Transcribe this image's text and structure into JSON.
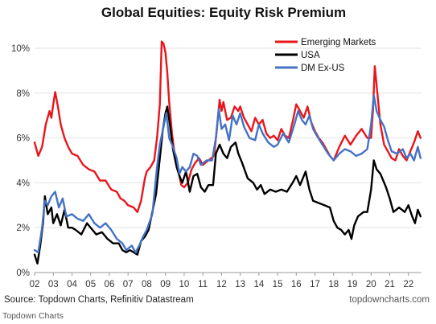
{
  "chart_data": {
    "type": "line",
    "title": "Global Equities: Equity Risk Premium",
    "xlabel": "",
    "ylabel": "",
    "x_range": [
      2002,
      2022.7
    ],
    "ylim": [
      0,
      10.5
    ],
    "y_ticks": [
      0,
      2,
      4,
      6,
      8,
      10
    ],
    "y_tick_labels": [
      "0%",
      "2%",
      "4%",
      "6%",
      "8%",
      "10%"
    ],
    "x_ticks": [
      2002,
      2003,
      2004,
      2005,
      2006,
      2007,
      2008,
      2009,
      2010,
      2011,
      2012,
      2013,
      2014,
      2015,
      2016,
      2017,
      2018,
      2019,
      2020,
      2021,
      2022
    ],
    "x_tick_labels": [
      "02",
      "03",
      "04",
      "05",
      "06",
      "07",
      "08",
      "09",
      "10",
      "11",
      "12",
      "13",
      "14",
      "15",
      "16",
      "17",
      "18",
      "19",
      "20",
      "21",
      "22"
    ],
    "grid": "horizontal",
    "legend_position": "top-right",
    "series": [
      {
        "name": "Emerging Markets",
        "color": "#e8161b",
        "points": [
          [
            2002.0,
            5.8
          ],
          [
            2002.2,
            5.2
          ],
          [
            2002.4,
            5.6
          ],
          [
            2002.6,
            6.6
          ],
          [
            2002.8,
            7.2
          ],
          [
            2002.9,
            6.9
          ],
          [
            2003.0,
            7.5
          ],
          [
            2003.1,
            8.05
          ],
          [
            2003.25,
            7.4
          ],
          [
            2003.4,
            6.6
          ],
          [
            2003.6,
            6.0
          ],
          [
            2003.8,
            5.6
          ],
          [
            2004.0,
            5.3
          ],
          [
            2004.3,
            5.2
          ],
          [
            2004.6,
            4.8
          ],
          [
            2004.9,
            4.6
          ],
          [
            2005.2,
            4.5
          ],
          [
            2005.5,
            4.1
          ],
          [
            2005.8,
            4.1
          ],
          [
            2006.1,
            3.7
          ],
          [
            2006.4,
            3.6
          ],
          [
            2006.6,
            3.3
          ],
          [
            2006.8,
            3.2
          ],
          [
            2007.0,
            3.0
          ],
          [
            2007.3,
            2.9
          ],
          [
            2007.5,
            2.7
          ],
          [
            2007.7,
            3.2
          ],
          [
            2007.9,
            4.2
          ],
          [
            2008.0,
            4.5
          ],
          [
            2008.2,
            4.7
          ],
          [
            2008.4,
            5.0
          ],
          [
            2008.55,
            6.0
          ],
          [
            2008.7,
            7.5
          ],
          [
            2008.8,
            10.3
          ],
          [
            2008.9,
            10.2
          ],
          [
            2009.0,
            9.8
          ],
          [
            2009.1,
            8.9
          ],
          [
            2009.2,
            7.6
          ],
          [
            2009.35,
            6.2
          ],
          [
            2009.5,
            5.2
          ],
          [
            2009.7,
            4.5
          ],
          [
            2009.85,
            3.9
          ],
          [
            2010.0,
            3.8
          ],
          [
            2010.2,
            4.0
          ],
          [
            2010.4,
            4.6
          ],
          [
            2010.6,
            4.9
          ],
          [
            2010.8,
            5.1
          ],
          [
            2011.0,
            4.8
          ],
          [
            2011.3,
            5.0
          ],
          [
            2011.6,
            5.2
          ],
          [
            2011.75,
            6.4
          ],
          [
            2011.9,
            7.7
          ],
          [
            2012.0,
            7.2
          ],
          [
            2012.1,
            7.6
          ],
          [
            2012.3,
            6.8
          ],
          [
            2012.5,
            6.9
          ],
          [
            2012.7,
            7.4
          ],
          [
            2012.9,
            7.2
          ],
          [
            2013.0,
            7.4
          ],
          [
            2013.2,
            6.9
          ],
          [
            2013.4,
            6.6
          ],
          [
            2013.6,
            6.3
          ],
          [
            2013.8,
            6.9
          ],
          [
            2014.0,
            6.6
          ],
          [
            2014.2,
            6.8
          ],
          [
            2014.4,
            6.2
          ],
          [
            2014.6,
            6.0
          ],
          [
            2014.8,
            6.1
          ],
          [
            2015.0,
            5.9
          ],
          [
            2015.2,
            6.4
          ],
          [
            2015.4,
            6.1
          ],
          [
            2015.6,
            6.0
          ],
          [
            2015.8,
            6.7
          ],
          [
            2016.0,
            7.5
          ],
          [
            2016.2,
            7.2
          ],
          [
            2016.4,
            6.9
          ],
          [
            2016.6,
            7.4
          ],
          [
            2016.8,
            6.7
          ],
          [
            2017.0,
            6.3
          ],
          [
            2017.2,
            6.0
          ],
          [
            2017.4,
            5.8
          ],
          [
            2017.6,
            5.5
          ],
          [
            2017.8,
            5.2
          ],
          [
            2018.0,
            5.0
          ],
          [
            2018.3,
            5.6
          ],
          [
            2018.6,
            6.1
          ],
          [
            2018.9,
            5.7
          ],
          [
            2019.2,
            6.1
          ],
          [
            2019.5,
            6.4
          ],
          [
            2019.8,
            6.0
          ],
          [
            2020.0,
            6.0
          ],
          [
            2020.1,
            7.2
          ],
          [
            2020.2,
            9.2
          ],
          [
            2020.35,
            7.9
          ],
          [
            2020.5,
            6.6
          ],
          [
            2020.7,
            5.7
          ],
          [
            2020.9,
            5.4
          ],
          [
            2021.1,
            5.1
          ],
          [
            2021.3,
            5.0
          ],
          [
            2021.5,
            5.5
          ],
          [
            2021.7,
            5.2
          ],
          [
            2021.9,
            5.0
          ],
          [
            2022.1,
            5.4
          ],
          [
            2022.3,
            5.8
          ],
          [
            2022.5,
            6.3
          ],
          [
            2022.65,
            6.0
          ]
        ]
      },
      {
        "name": "USA",
        "color": "#000000",
        "points": [
          [
            2002.0,
            0.8
          ],
          [
            2002.15,
            0.4
          ],
          [
            2002.3,
            1.2
          ],
          [
            2002.45,
            2.2
          ],
          [
            2002.55,
            3.4
          ],
          [
            2002.7,
            2.6
          ],
          [
            2002.9,
            2.9
          ],
          [
            2003.0,
            2.2
          ],
          [
            2003.2,
            2.6
          ],
          [
            2003.4,
            2.1
          ],
          [
            2003.6,
            2.8
          ],
          [
            2003.8,
            2.0
          ],
          [
            2004.0,
            2.0
          ],
          [
            2004.2,
            1.9
          ],
          [
            2004.5,
            1.7
          ],
          [
            2004.8,
            2.2
          ],
          [
            2005.0,
            2.0
          ],
          [
            2005.3,
            1.7
          ],
          [
            2005.6,
            1.8
          ],
          [
            2005.9,
            1.5
          ],
          [
            2006.2,
            1.3
          ],
          [
            2006.5,
            1.3
          ],
          [
            2006.7,
            1.0
          ],
          [
            2006.9,
            0.9
          ],
          [
            2007.1,
            1.0
          ],
          [
            2007.3,
            0.9
          ],
          [
            2007.5,
            0.8
          ],
          [
            2007.7,
            1.4
          ],
          [
            2007.9,
            1.6
          ],
          [
            2008.1,
            1.9
          ],
          [
            2008.3,
            2.7
          ],
          [
            2008.5,
            3.5
          ],
          [
            2008.7,
            5.1
          ],
          [
            2008.85,
            6.3
          ],
          [
            2009.0,
            7.1
          ],
          [
            2009.1,
            7.4
          ],
          [
            2009.25,
            6.5
          ],
          [
            2009.4,
            5.5
          ],
          [
            2009.6,
            4.7
          ],
          [
            2009.75,
            4.3
          ],
          [
            2009.9,
            4.0
          ],
          [
            2010.1,
            4.5
          ],
          [
            2010.3,
            3.6
          ],
          [
            2010.5,
            4.3
          ],
          [
            2010.7,
            4.4
          ],
          [
            2010.9,
            3.8
          ],
          [
            2011.1,
            3.6
          ],
          [
            2011.3,
            3.9
          ],
          [
            2011.55,
            3.9
          ],
          [
            2011.7,
            5.3
          ],
          [
            2011.9,
            5.7
          ],
          [
            2012.1,
            5.3
          ],
          [
            2012.3,
            5.1
          ],
          [
            2012.5,
            5.6
          ],
          [
            2012.75,
            5.8
          ],
          [
            2012.9,
            5.3
          ],
          [
            2013.1,
            4.9
          ],
          [
            2013.4,
            4.2
          ],
          [
            2013.7,
            4.0
          ],
          [
            2013.9,
            3.7
          ],
          [
            2014.1,
            3.9
          ],
          [
            2014.3,
            3.5
          ],
          [
            2014.6,
            3.7
          ],
          [
            2014.9,
            3.6
          ],
          [
            2015.2,
            3.7
          ],
          [
            2015.5,
            3.6
          ],
          [
            2015.8,
            4.0
          ],
          [
            2016.0,
            4.3
          ],
          [
            2016.2,
            3.9
          ],
          [
            2016.5,
            4.5
          ],
          [
            2016.7,
            3.7
          ],
          [
            2016.9,
            3.2
          ],
          [
            2017.2,
            3.1
          ],
          [
            2017.5,
            3.0
          ],
          [
            2017.8,
            2.9
          ],
          [
            2018.0,
            2.3
          ],
          [
            2018.2,
            2.0
          ],
          [
            2018.4,
            1.9
          ],
          [
            2018.6,
            1.7
          ],
          [
            2018.8,
            1.9
          ],
          [
            2018.95,
            1.5
          ],
          [
            2019.1,
            2.1
          ],
          [
            2019.3,
            2.5
          ],
          [
            2019.6,
            2.7
          ],
          [
            2019.8,
            2.7
          ],
          [
            2020.0,
            3.7
          ],
          [
            2020.15,
            5.0
          ],
          [
            2020.3,
            4.6
          ],
          [
            2020.5,
            4.4
          ],
          [
            2020.8,
            3.8
          ],
          [
            2021.0,
            3.3
          ],
          [
            2021.2,
            2.7
          ],
          [
            2021.5,
            2.9
          ],
          [
            2021.8,
            2.7
          ],
          [
            2022.0,
            3.0
          ],
          [
            2022.2,
            2.5
          ],
          [
            2022.35,
            2.2
          ],
          [
            2022.5,
            2.8
          ],
          [
            2022.65,
            2.5
          ]
        ]
      },
      {
        "name": "DM Ex-US",
        "color": "#4472c4",
        "points": [
          [
            2002.0,
            1.0
          ],
          [
            2002.2,
            0.9
          ],
          [
            2002.4,
            2.0
          ],
          [
            2002.55,
            3.2
          ],
          [
            2002.7,
            3.0
          ],
          [
            2002.9,
            3.4
          ],
          [
            2003.1,
            3.6
          ],
          [
            2003.3,
            2.9
          ],
          [
            2003.5,
            3.3
          ],
          [
            2003.7,
            2.5
          ],
          [
            2004.0,
            2.6
          ],
          [
            2004.3,
            2.4
          ],
          [
            2004.6,
            2.3
          ],
          [
            2004.9,
            2.6
          ],
          [
            2005.2,
            2.2
          ],
          [
            2005.5,
            2.0
          ],
          [
            2005.8,
            2.2
          ],
          [
            2006.1,
            1.9
          ],
          [
            2006.4,
            1.5
          ],
          [
            2006.7,
            1.3
          ],
          [
            2006.9,
            1.0
          ],
          [
            2007.2,
            1.2
          ],
          [
            2007.4,
            0.9
          ],
          [
            2007.6,
            1.2
          ],
          [
            2007.8,
            1.6
          ],
          [
            2008.0,
            1.9
          ],
          [
            2008.3,
            2.6
          ],
          [
            2008.55,
            4.7
          ],
          [
            2008.7,
            5.7
          ],
          [
            2008.9,
            6.5
          ],
          [
            2009.05,
            7.1
          ],
          [
            2009.2,
            6.0
          ],
          [
            2009.4,
            5.6
          ],
          [
            2009.6,
            5.1
          ],
          [
            2009.75,
            4.4
          ],
          [
            2009.9,
            4.7
          ],
          [
            2010.1,
            4.5
          ],
          [
            2010.3,
            4.7
          ],
          [
            2010.5,
            5.3
          ],
          [
            2010.7,
            5.2
          ],
          [
            2010.9,
            4.8
          ],
          [
            2011.2,
            5.0
          ],
          [
            2011.5,
            5.0
          ],
          [
            2011.7,
            6.0
          ],
          [
            2011.85,
            7.3
          ],
          [
            2012.0,
            6.4
          ],
          [
            2012.2,
            6.6
          ],
          [
            2012.4,
            5.9
          ],
          [
            2012.6,
            7.0
          ],
          [
            2012.8,
            6.6
          ],
          [
            2013.0,
            7.1
          ],
          [
            2013.2,
            6.5
          ],
          [
            2013.5,
            6.0
          ],
          [
            2013.8,
            5.9
          ],
          [
            2014.0,
            6.6
          ],
          [
            2014.2,
            6.2
          ],
          [
            2014.5,
            5.8
          ],
          [
            2014.8,
            5.6
          ],
          [
            2015.0,
            5.7
          ],
          [
            2015.3,
            6.2
          ],
          [
            2015.6,
            5.8
          ],
          [
            2015.9,
            6.6
          ],
          [
            2016.1,
            7.2
          ],
          [
            2016.3,
            6.8
          ],
          [
            2016.5,
            6.6
          ],
          [
            2016.7,
            7.0
          ],
          [
            2016.9,
            6.4
          ],
          [
            2017.1,
            6.1
          ],
          [
            2017.4,
            5.7
          ],
          [
            2017.7,
            5.3
          ],
          [
            2018.0,
            5.0
          ],
          [
            2018.3,
            5.3
          ],
          [
            2018.6,
            5.5
          ],
          [
            2018.9,
            5.4
          ],
          [
            2019.2,
            5.2
          ],
          [
            2019.5,
            5.3
          ],
          [
            2019.8,
            5.5
          ],
          [
            2020.0,
            6.6
          ],
          [
            2020.15,
            7.9
          ],
          [
            2020.3,
            7.2
          ],
          [
            2020.5,
            6.8
          ],
          [
            2020.7,
            6.5
          ],
          [
            2020.9,
            5.9
          ],
          [
            2021.1,
            5.4
          ],
          [
            2021.4,
            5.3
          ],
          [
            2021.7,
            5.5
          ],
          [
            2021.9,
            5.1
          ],
          [
            2022.1,
            5.3
          ],
          [
            2022.3,
            5.0
          ],
          [
            2022.5,
            5.6
          ],
          [
            2022.65,
            5.1
          ]
        ]
      }
    ]
  },
  "source_text": "Source: Topdown Charts, Refinitiv Datastream",
  "site_text": "topdowncharts.com",
  "brand_text": "Topdown Charts"
}
